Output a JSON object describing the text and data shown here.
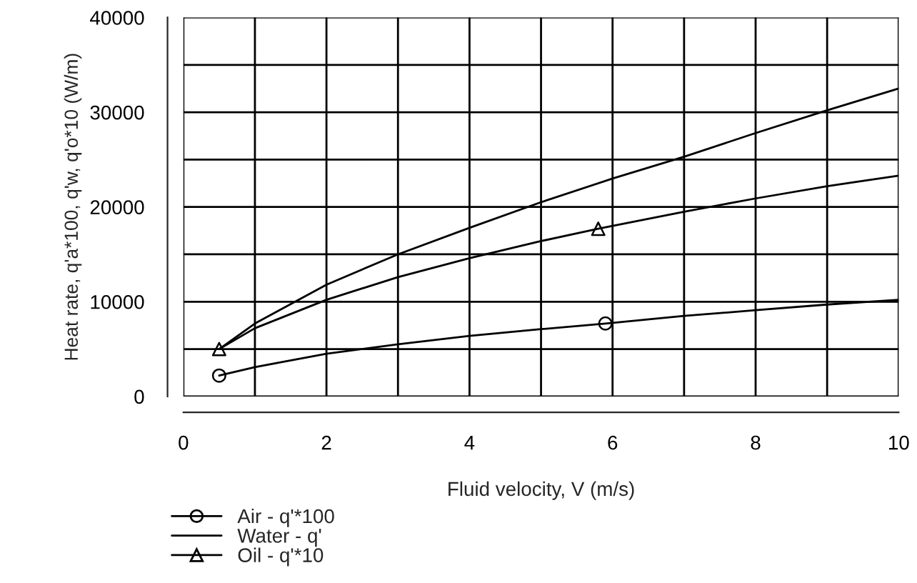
{
  "chart_data": {
    "type": "line",
    "xlabel": "Fluid velocity, V (m/s)",
    "ylabel": "Heat rate, q'a*100, q'w, q'o*10 (W/m)",
    "xlim": [
      0,
      10
    ],
    "ylim": [
      0,
      40000
    ],
    "xticks": [
      0,
      {
        "value": 1,
        "label": null
      },
      2,
      {
        "value": 3,
        "label": null
      },
      4,
      {
        "value": 5,
        "label": null
      },
      6,
      {
        "value": 7,
        "label": null
      },
      8,
      {
        "value": 9,
        "label": null
      },
      10
    ],
    "yticks": [
      0,
      {
        "value": 5000,
        "label": null
      },
      10000,
      {
        "value": 15000,
        "label": null
      },
      20000,
      {
        "value": 25000,
        "label": null
      },
      30000,
      {
        "value": 35000,
        "label": null
      },
      40000
    ],
    "grid": true,
    "legend": "bottom left",
    "series": [
      {
        "name": "Air - q'*100",
        "color": "#000000",
        "x": [
          0.5,
          1,
          2,
          3,
          4,
          5,
          5.9,
          7,
          8,
          9,
          10
        ],
        "values": [
          2200,
          3100,
          4500,
          5500,
          6400,
          7100,
          7700,
          8500,
          9100,
          9700,
          10200
        ]
      },
      {
        "type": "scatter",
        "color": "#000000",
        "marker": "circle",
        "x": [
          0.5,
          5.9
        ],
        "values": [
          2200,
          7700
        ]
      },
      {
        "name": "Water - q'",
        "color": "#000000",
        "x": [
          0.5,
          1,
          2,
          3,
          4,
          5,
          6,
          7,
          8,
          9,
          10
        ],
        "values": [
          5000,
          7700,
          11800,
          15000,
          17800,
          20500,
          23000,
          25300,
          27800,
          30200,
          32500
        ]
      },
      {
        "name": "Oil - q'*10",
        "color": "#000000",
        "x": [
          0.5,
          1,
          2,
          3,
          4,
          5,
          5.8,
          7,
          8,
          9,
          10
        ],
        "values": [
          5000,
          7200,
          10200,
          12600,
          14600,
          16400,
          17700,
          19500,
          20900,
          22200,
          23300
        ]
      },
      {
        "type": "scatter",
        "color": "#000000",
        "marker": "triangle",
        "x": [
          0.5,
          5.8
        ],
        "values": [
          5000,
          17700
        ]
      }
    ]
  }
}
